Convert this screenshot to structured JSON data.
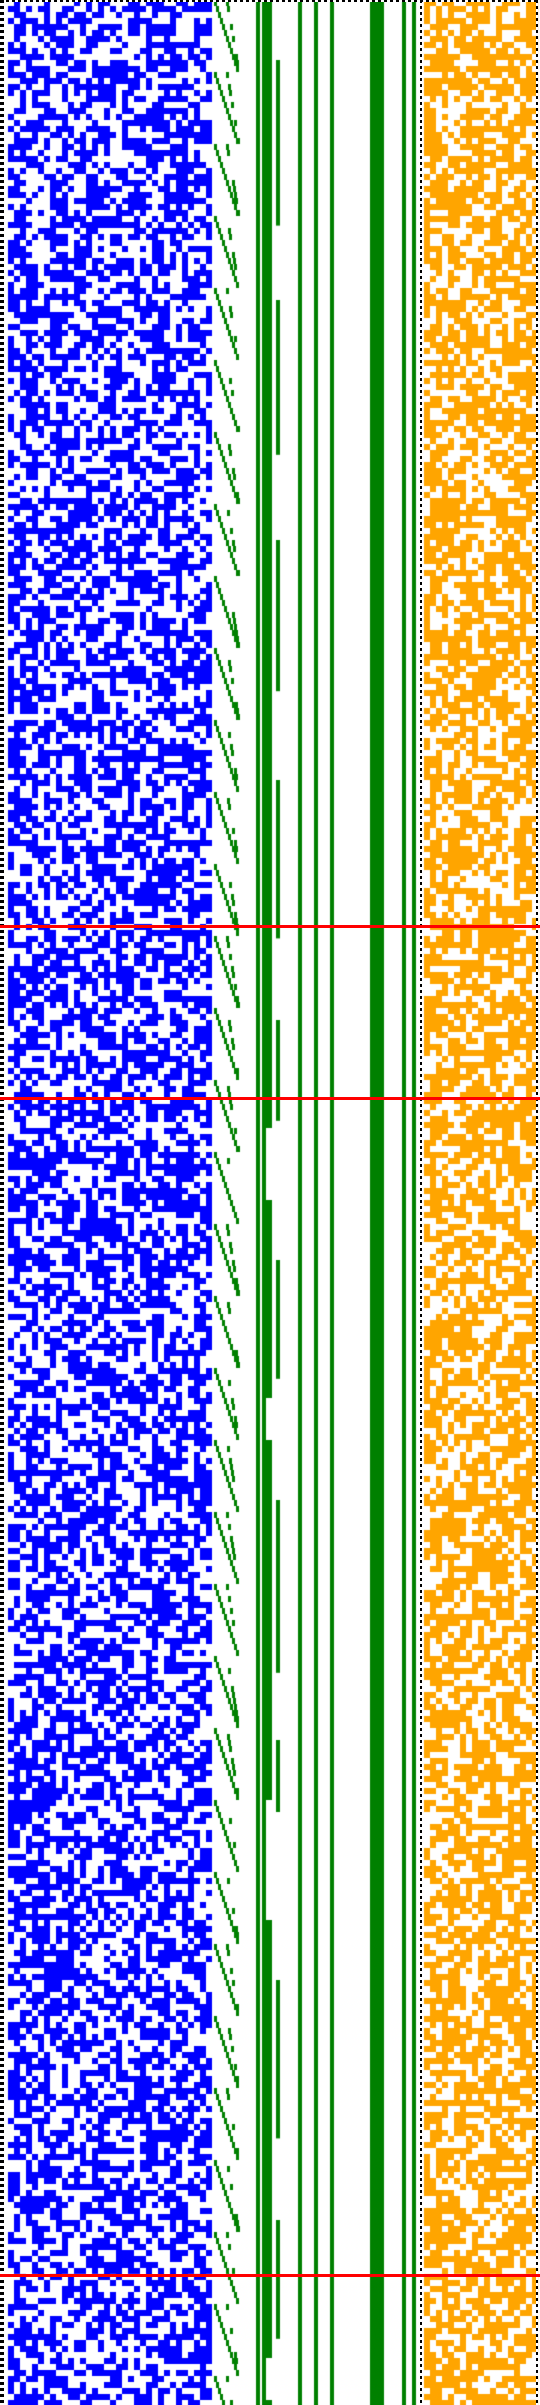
{
  "colors": {
    "background": "#ffffff",
    "bits": "#0000ff",
    "staircase": "#008000",
    "orange_bits": "#ffa500",
    "marker_line": "#ff0000",
    "border": "#000000"
  },
  "markers": [
    {
      "name": "marker-line-1"
    },
    {
      "name": "marker-line-2"
    },
    {
      "name": "marker-line-3"
    }
  ]
}
